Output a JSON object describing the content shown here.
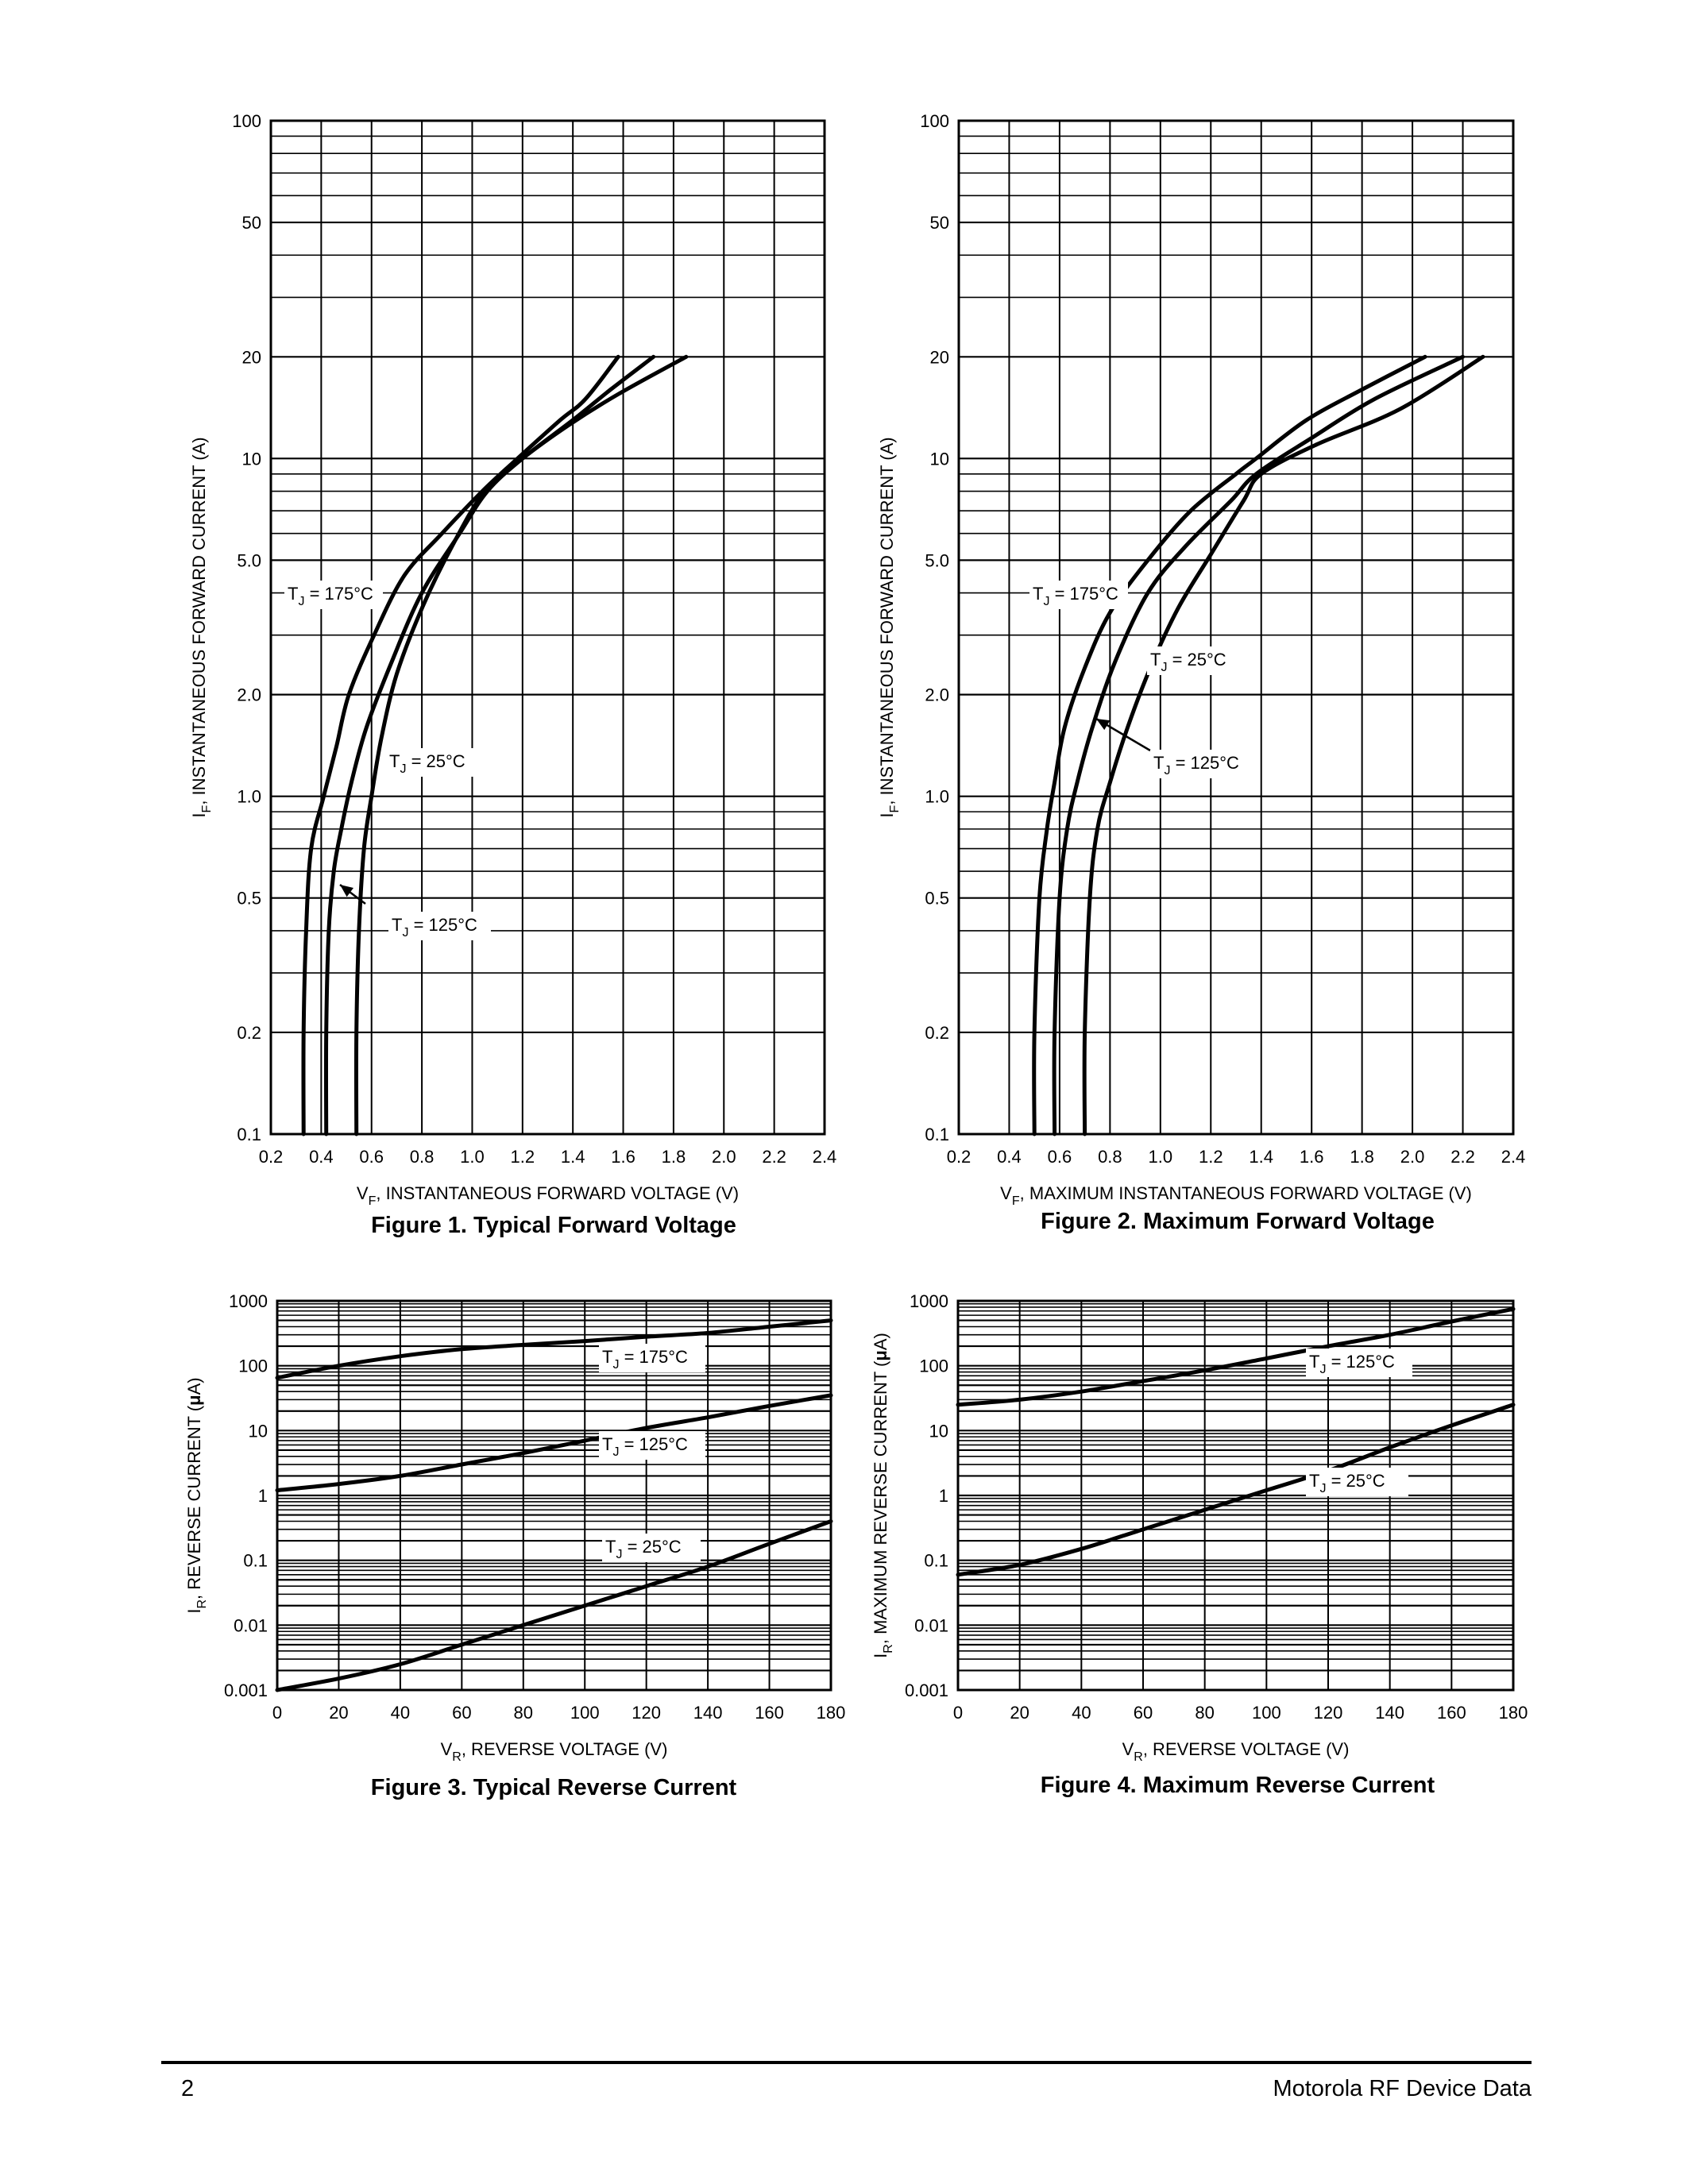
{
  "footer": {
    "page_number": "2",
    "publisher": "Motorola RF Device Data"
  },
  "chart_data": [
    {
      "id": "fig1",
      "type": "line",
      "caption": "Figure 1. Typical Forward Voltage",
      "xlabel": "V_F, INSTANTANEOUS FORWARD VOLTAGE (V)",
      "xlabel_main": "V",
      "xlabel_sub": "F",
      "xlabel_rest": ", INSTANTANEOUS FORWARD VOLTAGE (V)",
      "ylabel_main": "I",
      "ylabel_sub": "F",
      "ylabel_rest": ", INSTANTANEOUS FORWARD CURRENT (A)",
      "xlim": [
        0.2,
        2.4
      ],
      "ylim": [
        0.1,
        100
      ],
      "yscale": "log",
      "x_ticks": [
        0.2,
        0.4,
        0.6,
        0.8,
        1.0,
        1.2,
        1.4,
        1.6,
        1.8,
        2.0,
        2.2,
        2.4
      ],
      "x_tick_labels": [
        "0.2",
        "0.4",
        "0.6",
        "0.8",
        "1.0",
        "1.2",
        "1.4",
        "1.6",
        "1.8",
        "2.0",
        "2.2",
        "2.4"
      ],
      "y_tick_values": [
        0.1,
        0.2,
        0.5,
        1,
        2,
        5,
        10,
        20,
        50,
        100
      ],
      "y_tick_labels": [
        "0.1",
        "0.2",
        "0.5",
        "1.0",
        "2.0",
        "5.0",
        "10",
        "20",
        "50",
        "100"
      ],
      "grid": true,
      "series": [
        {
          "name": "T_J = 175°C",
          "x": [
            0.33,
            0.33,
            0.34,
            0.36,
            0.41,
            0.46,
            0.51,
            0.61,
            0.73,
            0.88,
            1.04,
            1.18,
            1.35,
            1.45,
            1.58
          ],
          "y": [
            0.1,
            0.2,
            0.4,
            0.7,
            1.0,
            1.4,
            2.0,
            3.0,
            4.5,
            6.0,
            8.0,
            10.0,
            13.0,
            15.0,
            20.0
          ]
        },
        {
          "name": "T_J = 125°C",
          "x": [
            0.42,
            0.42,
            0.43,
            0.45,
            0.48,
            0.52,
            0.58,
            0.68,
            0.8,
            0.95,
            1.06,
            1.2,
            1.4,
            1.55,
            1.72
          ],
          "y": [
            0.1,
            0.2,
            0.4,
            0.6,
            0.8,
            1.1,
            1.6,
            2.5,
            4.0,
            6.0,
            8.0,
            10.0,
            13.0,
            16.0,
            20.0
          ]
        },
        {
          "name": "T_J = 25°C",
          "x": [
            0.54,
            0.54,
            0.55,
            0.57,
            0.6,
            0.64,
            0.7,
            0.8,
            0.92,
            1.05,
            1.2,
            1.38,
            1.58,
            1.85
          ],
          "y": [
            0.1,
            0.2,
            0.4,
            0.7,
            1.0,
            1.5,
            2.3,
            3.6,
            5.5,
            8.0,
            10.0,
            12.5,
            15.5,
            20.0
          ]
        }
      ],
      "annotations": [
        {
          "main": "T",
          "sub": "J",
          "rest": " = 175°C"
        },
        {
          "main": "T",
          "sub": "J",
          "rest": " = 25°C"
        },
        {
          "main": "T",
          "sub": "J",
          "rest": " = 125°C"
        }
      ]
    },
    {
      "id": "fig2",
      "type": "line",
      "caption": "Figure 2. Maximum Forward Voltage",
      "xlabel": "V_F, MAXIMUM INSTANTANEOUS FORWARD VOLTAGE (V)",
      "xlabel_main": "V",
      "xlabel_sub": "F",
      "xlabel_rest": ", MAXIMUM INSTANTANEOUS FORWARD VOLTAGE (V)",
      "ylabel_main": "I",
      "ylabel_sub": "F",
      "ylabel_rest": ", INSTANTANEOUS FORWARD CURRENT (A)",
      "xlim": [
        0.2,
        2.4
      ],
      "ylim": [
        0.1,
        100
      ],
      "yscale": "log",
      "x_ticks": [
        0.2,
        0.4,
        0.6,
        0.8,
        1.0,
        1.2,
        1.4,
        1.6,
        1.8,
        2.0,
        2.2,
        2.4
      ],
      "x_tick_labels": [
        "0.2",
        "0.4",
        "0.6",
        "0.8",
        "1.0",
        "1.2",
        "1.4",
        "1.6",
        "1.8",
        "2.0",
        "2.2",
        "2.4"
      ],
      "y_tick_values": [
        0.1,
        0.2,
        0.5,
        1,
        2,
        5,
        10,
        20,
        50,
        100
      ],
      "y_tick_labels": [
        "0.1",
        "0.2",
        "0.5",
        "1.0",
        "2.0",
        "5.0",
        "10",
        "20",
        "50",
        "100"
      ],
      "grid": true,
      "series": [
        {
          "name": "T_J = 175°C",
          "x": [
            0.5,
            0.5,
            0.52,
            0.55,
            0.58,
            0.62,
            0.7,
            0.8,
            0.95,
            1.12,
            1.3,
            1.38,
            1.58,
            1.8,
            2.05
          ],
          "y": [
            0.1,
            0.2,
            0.5,
            0.8,
            1.1,
            1.6,
            2.4,
            3.5,
            5.0,
            7.0,
            9.0,
            10.0,
            13.0,
            16.0,
            20.0
          ]
        },
        {
          "name": "T_J = 125°C",
          "x": [
            0.58,
            0.58,
            0.6,
            0.63,
            0.67,
            0.73,
            0.82,
            0.95,
            1.1,
            1.28,
            1.38,
            1.6,
            1.85,
            2.2
          ],
          "y": [
            0.1,
            0.2,
            0.5,
            0.8,
            1.1,
            1.6,
            2.5,
            4.0,
            5.5,
            7.5,
            9.0,
            11.5,
            15.0,
            20.0
          ]
        },
        {
          "name": "T_J = 25°C",
          "x": [
            0.7,
            0.7,
            0.72,
            0.75,
            0.8,
            0.87,
            0.96,
            1.07,
            1.2,
            1.33,
            1.4,
            1.62,
            1.95,
            2.28
          ],
          "y": [
            0.1,
            0.2,
            0.5,
            0.8,
            1.1,
            1.6,
            2.4,
            3.6,
            5.2,
            7.5,
            9.0,
            11.0,
            14.0,
            20.0
          ]
        }
      ],
      "annotations": [
        {
          "main": "T",
          "sub": "J",
          "rest": " = 175°C"
        },
        {
          "main": "T",
          "sub": "J",
          "rest": " = 25°C"
        },
        {
          "main": "T",
          "sub": "J",
          "rest": " = 125°C"
        }
      ]
    },
    {
      "id": "fig3",
      "type": "line",
      "caption": "Figure 3. Typical Reverse Current",
      "xlabel": "V_R, REVERSE VOLTAGE (V)",
      "xlabel_main": "V",
      "xlabel_sub": "R",
      "xlabel_rest": ", REVERSE VOLTAGE (V)",
      "ylabel_main": "I",
      "ylabel_sub": "R",
      "ylabel_rest": ", REVERSE CURRENT (",
      "ylabel_mu": "μ",
      "ylabel_end": "A)",
      "xlim": [
        0,
        180
      ],
      "ylim": [
        0.001,
        1000
      ],
      "yscale": "log",
      "x_ticks": [
        0,
        20,
        40,
        60,
        80,
        100,
        120,
        140,
        160,
        180
      ],
      "x_tick_labels": [
        "0",
        "20",
        "40",
        "60",
        "80",
        "100",
        "120",
        "140",
        "160",
        "180"
      ],
      "y_tick_values": [
        0.001,
        0.01,
        0.1,
        1,
        10,
        100,
        1000
      ],
      "y_tick_labels": [
        "0.001",
        "0.01",
        "0.1",
        "1",
        "10",
        "100",
        "1000"
      ],
      "grid": true,
      "series": [
        {
          "name": "T_J = 175°C",
          "x": [
            0,
            20,
            40,
            60,
            80,
            100,
            120,
            140,
            160,
            180
          ],
          "y": [
            65,
            100,
            140,
            180,
            210,
            240,
            280,
            320,
            400,
            500
          ]
        },
        {
          "name": "T_J = 125°C",
          "x": [
            0,
            20,
            40,
            60,
            80,
            100,
            120,
            140,
            160,
            180
          ],
          "y": [
            1.2,
            1.5,
            2.0,
            3.0,
            4.5,
            7.0,
            11.0,
            16.0,
            24.0,
            35.0
          ]
        },
        {
          "name": "T_J = 25°C",
          "x": [
            0,
            20,
            40,
            60,
            80,
            100,
            120,
            140,
            160,
            180
          ],
          "y": [
            0.001,
            0.0015,
            0.0025,
            0.005,
            0.01,
            0.02,
            0.04,
            0.08,
            0.18,
            0.4
          ]
        }
      ],
      "annotations": [
        {
          "main": "T",
          "sub": "J",
          "rest": " = 175°C"
        },
        {
          "main": "T",
          "sub": "J",
          "rest": " = 125°C"
        },
        {
          "main": "T",
          "sub": "J",
          "rest": " = 25°C"
        }
      ]
    },
    {
      "id": "fig4",
      "type": "line",
      "caption": "Figure 4. Maximum Reverse Current",
      "xlabel": "V_R, REVERSE VOLTAGE (V)",
      "xlabel_main": "V",
      "xlabel_sub": "R",
      "xlabel_rest": ", REVERSE VOLTAGE (V)",
      "ylabel_main": "I",
      "ylabel_sub": "R",
      "ylabel_rest": ", MAXIMUM REVERSE CURRENT (",
      "ylabel_mu": "μ",
      "ylabel_end": "A)",
      "xlim": [
        0,
        180
      ],
      "ylim": [
        0.001,
        1000
      ],
      "yscale": "log",
      "x_ticks": [
        0,
        20,
        40,
        60,
        80,
        100,
        120,
        140,
        160,
        180
      ],
      "x_tick_labels": [
        "0",
        "20",
        "40",
        "60",
        "80",
        "100",
        "120",
        "140",
        "160",
        "180"
      ],
      "y_tick_values": [
        0.001,
        0.01,
        0.1,
        1,
        10,
        100,
        1000
      ],
      "y_tick_labels": [
        "0.001",
        "0.01",
        "0.1",
        "1",
        "10",
        "100",
        "1000"
      ],
      "grid": true,
      "series": [
        {
          "name": "T_J = 125°C",
          "x": [
            0,
            20,
            40,
            60,
            80,
            100,
            120,
            140,
            160,
            180
          ],
          "y": [
            25,
            30,
            40,
            58,
            85,
            130,
            200,
            300,
            480,
            750
          ]
        },
        {
          "name": "T_J = 25°C",
          "x": [
            0,
            20,
            40,
            60,
            80,
            100,
            120,
            140,
            160,
            180
          ],
          "y": [
            0.06,
            0.085,
            0.15,
            0.3,
            0.6,
            1.2,
            2.4,
            5.5,
            12.0,
            25.0
          ]
        }
      ],
      "annotations": [
        {
          "main": "T",
          "sub": "J",
          "rest": " = 125°C"
        },
        {
          "main": "T",
          "sub": "J",
          "rest": " = 25°C"
        }
      ]
    }
  ]
}
